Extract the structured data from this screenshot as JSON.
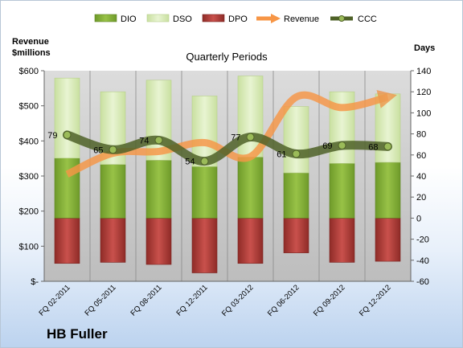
{
  "chart_data": {
    "type": "bar",
    "title": "Quarterly Periods",
    "left_axis_title": [
      "Revenue",
      "$millions"
    ],
    "right_axis_title": "Days",
    "company": "HB Fuller",
    "categories": [
      "FQ 02-2011",
      "FQ 05-2011",
      "FQ 08-2011",
      "FQ 12-2011",
      "FQ 03-2012",
      "FQ 06-2012",
      "FQ 09-2012",
      "FQ 12-2012"
    ],
    "left_axis": {
      "ylim": [
        0,
        600
      ],
      "ticks": [
        0,
        100,
        200,
        300,
        400,
        500,
        600
      ],
      "tick_labels": [
        "$-",
        "$100",
        "$200",
        "$300",
        "$400",
        "$500",
        "$600"
      ]
    },
    "right_axis": {
      "ylim": [
        -60,
        140
      ],
      "ticks": [
        -60,
        -40,
        -20,
        0,
        20,
        40,
        60,
        80,
        100,
        120,
        140
      ],
      "tick_labels": [
        "-60",
        "-40",
        "-20",
        "0",
        "20",
        "40",
        "60",
        "80",
        "100",
        "120",
        "140"
      ]
    },
    "grid": "vertical",
    "legend_position": "top",
    "series": [
      {
        "name": "DIO",
        "type": "stacked-bar",
        "axis": "days",
        "color": "#8cb43c",
        "values": [
          57,
          51,
          55,
          49,
          58,
          43,
          52,
          53
        ]
      },
      {
        "name": "DSO",
        "type": "stacked-bar",
        "axis": "days",
        "color": "#d9ebb4",
        "values": [
          76,
          69,
          76,
          67,
          77,
          63,
          68,
          65
        ]
      },
      {
        "name": "DPO",
        "type": "stacked-bar-negative",
        "axis": "days",
        "color": "#c0504d",
        "values": [
          -43,
          -42,
          -44,
          -52,
          -43,
          -33,
          -42,
          -41
        ]
      },
      {
        "name": "Revenue",
        "type": "line",
        "axis": "revenue",
        "color": "#f79646",
        "values": [
          305,
          365,
          370,
          395,
          355,
          525,
          495,
          525
        ]
      },
      {
        "name": "CCC",
        "type": "line",
        "axis": "days",
        "color": "#4f6228",
        "values": [
          79,
          65,
          74,
          54,
          77,
          61,
          69,
          68
        ],
        "labels": [
          "79",
          "65",
          "74",
          "54",
          "77",
          "61",
          "69",
          "68"
        ]
      }
    ]
  }
}
